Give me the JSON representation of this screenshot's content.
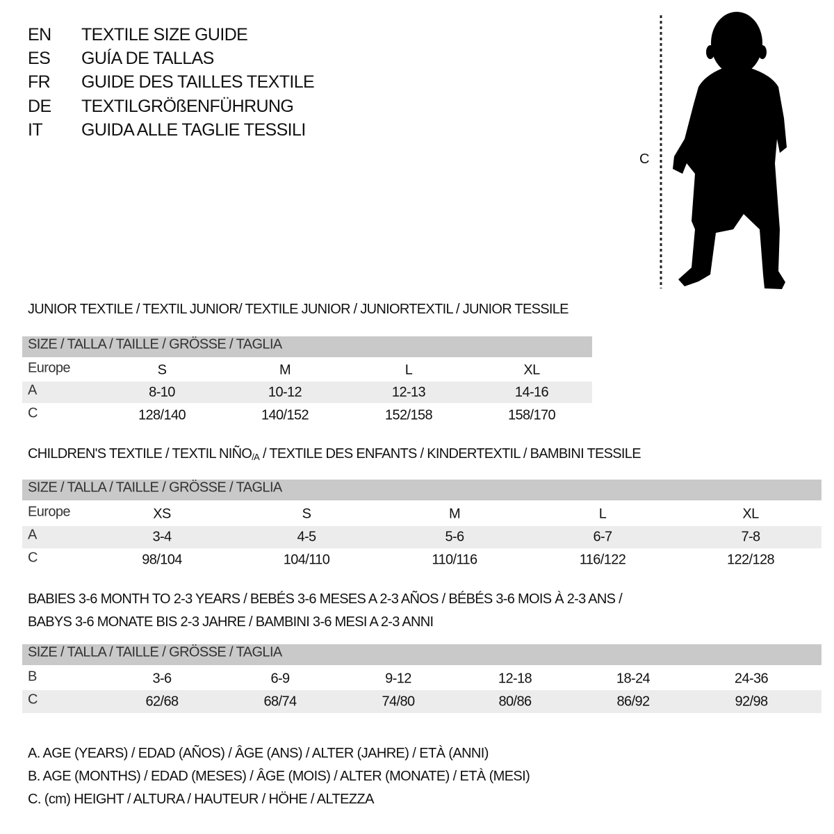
{
  "titles": [
    {
      "code": "EN",
      "text": "TEXTILE SIZE GUIDE"
    },
    {
      "code": "ES",
      "text": "GUÍA DE TALLAS"
    },
    {
      "code": "FR",
      "text": "GUIDE DES TAILLES TEXTILE"
    },
    {
      "code": "DE",
      "text": "TEXTILGRÖßENFÜHRUNG"
    },
    {
      "code": "IT",
      "text": "GUIDA ALLE TAGLIE TESSILI"
    }
  ],
  "figure": {
    "measure_label": "C",
    "icon": "child-silhouette-icon"
  },
  "junior": {
    "heading": "JUNIOR TEXTILE / TEXTIL JUNIOR/ TEXTILE JUNIOR / JUNIORTEXTIL / JUNIOR TESSILE",
    "size_header": "SIZE / TALLA / TAILLE / GRÖSSE / TAGLIA",
    "rows": [
      {
        "label": "Europe",
        "values": [
          "S",
          "M",
          "L",
          "XL"
        ]
      },
      {
        "label": "A",
        "values": [
          "8-10",
          "10-12",
          "12-13",
          "14-16"
        ]
      },
      {
        "label": "C",
        "values": [
          "128/140",
          "140/152",
          "152/158",
          "158/170"
        ]
      }
    ]
  },
  "children": {
    "heading_pre": "CHILDREN'S TEXTILE / TEXTIL NIÑO",
    "heading_sub": "/A",
    "heading_post": " / TEXTILE DES ENFANTS / KINDERTEXTIL / BAMBINI TESSILE",
    "size_header": "SIZE / TALLA / TAILLE / GRÖSSE / TAGLIA",
    "rows": [
      {
        "label": "Europe",
        "values": [
          "XS",
          "S",
          "M",
          "L",
          "XL"
        ]
      },
      {
        "label": "A",
        "values": [
          "3-4",
          "4-5",
          "5-6",
          "6-7",
          "7-8"
        ]
      },
      {
        "label": "C",
        "values": [
          "98/104",
          "104/110",
          "110/116",
          "116/122",
          "122/128"
        ]
      }
    ]
  },
  "babies": {
    "heading_line1": "BABIES 3-6 MONTH TO 2-3 YEARS / BEBÉS 3-6 MESES A 2-3 AÑOS / BÉBÉS 3-6 MOIS À 2-3 ANS /",
    "heading_line2": "BABYS 3-6 MONATE BIS 2-3 JAHRE / BAMBINI 3-6 MESI A 2-3 ANNI",
    "size_header": "SIZE / TALLA / TAILLE / GRÖSSE / TAGLIA",
    "rows": [
      {
        "label": "B",
        "values": [
          "3-6",
          "6-9",
          "9-12",
          "12-18",
          "18-24",
          "24-36"
        ]
      },
      {
        "label": "C",
        "values": [
          "62/68",
          "68/74",
          "74/80",
          "80/86",
          "86/92",
          "92/98"
        ]
      }
    ]
  },
  "legend": [
    "A. AGE (YEARS) / EDAD (AÑOS) / ÂGE (ANS) / ALTER (JAHRE) / ETÀ (ANNI)",
    "B. AGE (MONTHS) / EDAD (MESES) / ÂGE (MOIS) / ALTER (MONATE) / ETÀ (MESI)",
    "C. (cm) HEIGHT / ALTURA / HAUTEUR / HÖHE / ALTEZZA"
  ],
  "colors": {
    "header_bg": "#c9c9c9",
    "shade_bg": "#ececec",
    "text": "#111111"
  }
}
